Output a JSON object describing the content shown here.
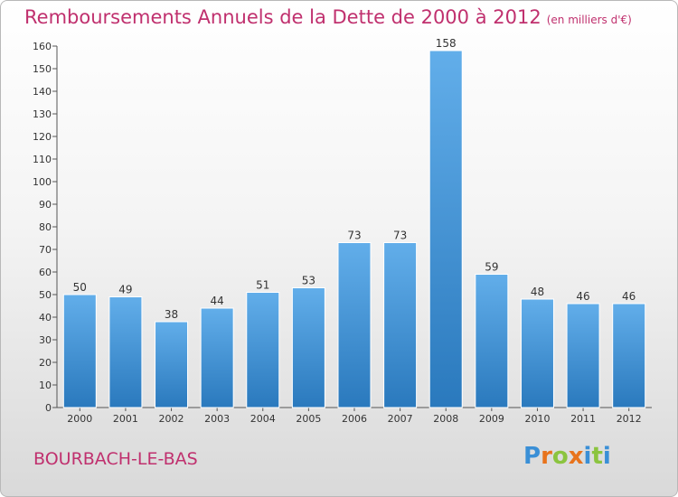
{
  "title": "Remboursements Annuels de la Dette de 2000 à 2012",
  "unit": "(en milliers d'€)",
  "city": "BOURBACH-LE-BAS",
  "logo": {
    "letters": [
      "P",
      "r",
      "o",
      "x",
      "i",
      "t",
      "i"
    ],
    "colors": [
      "#3a8fd6",
      "#e8731c",
      "#8bc43f",
      "#e8731c",
      "#3a8fd6",
      "#8bc43f",
      "#3a8fd6"
    ]
  },
  "colors": {
    "bar": "#4d9fdf",
    "bar_light": "#66b2ec",
    "bar_dark": "#2f7ec0",
    "title": "#c0306e"
  },
  "chart_data": {
    "type": "bar",
    "categories": [
      "2000",
      "2001",
      "2002",
      "2003",
      "2004",
      "2005",
      "2006",
      "2007",
      "2008",
      "2009",
      "2010",
      "2011",
      "2012"
    ],
    "values": [
      50,
      49,
      38,
      44,
      51,
      53,
      73,
      73,
      158,
      59,
      48,
      46,
      46
    ],
    "ylim": [
      0,
      160
    ],
    "yticks": [
      0,
      10,
      20,
      30,
      40,
      50,
      60,
      70,
      80,
      90,
      100,
      110,
      120,
      130,
      140,
      150,
      160
    ],
    "grid": false,
    "legend": "none"
  }
}
